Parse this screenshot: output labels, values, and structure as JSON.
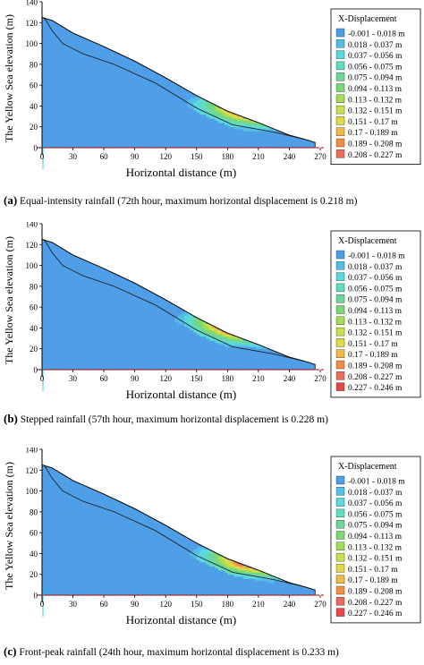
{
  "colors": {
    "background": "#4f9ee8",
    "axis_red": "#cc2222",
    "accent_cyan": "#00c8d8"
  },
  "legend_title": "X-Displacement",
  "chart_data": [
    {
      "type": "contour",
      "panel_label": "(a)",
      "caption": "Equal-intensity rainfall (72th hour, maximum horizontal displacement is 0.218 m)",
      "xlabel": "Horizontal distance (m)",
      "ylabel": "The Yellow Sea elevation (m)",
      "xlim": [
        0,
        270
      ],
      "ylim": [
        0,
        140
      ],
      "xticks": [
        0,
        30,
        60,
        90,
        120,
        150,
        180,
        210,
        240,
        270
      ],
      "yticks": [
        0,
        20,
        40,
        60,
        80,
        100,
        120,
        140
      ],
      "legend": [
        {
          "label": "-0.001 - 0.018 m",
          "color": "#4f9ee8"
        },
        {
          "label": "0.018 - 0.037 m",
          "color": "#52bfe8"
        },
        {
          "label": "0.037 - 0.056 m",
          "color": "#5ad8e0"
        },
        {
          "label": "0.056 - 0.075 m",
          "color": "#62dcc0"
        },
        {
          "label": "0.075 - 0.094 m",
          "color": "#6cd898"
        },
        {
          "label": "0.094 - 0.113 m",
          "color": "#7cd870"
        },
        {
          "label": "0.113 - 0.132 m",
          "color": "#a2dc58"
        },
        {
          "label": "0.132 - 0.151 m",
          "color": "#c8e04c"
        },
        {
          "label": "0.151 - 0.17 m",
          "color": "#e4d848"
        },
        {
          "label": "0.17 - 0.189 m",
          "color": "#f0b844"
        },
        {
          "label": "0.189 - 0.208 m",
          "color": "#f09046"
        },
        {
          "label": "0.208 - 0.227 m",
          "color": "#ec6c5c"
        }
      ],
      "slope_surface": [
        [
          0,
          125
        ],
        [
          10,
          122
        ],
        [
          30,
          110
        ],
        [
          60,
          97
        ],
        [
          90,
          83
        ],
        [
          120,
          67
        ],
        [
          150,
          50
        ],
        [
          180,
          35
        ],
        [
          210,
          24
        ],
        [
          240,
          12
        ],
        [
          255,
          8
        ],
        [
          265,
          5
        ]
      ],
      "slip_surface": [
        [
          2,
          125
        ],
        [
          10,
          112
        ],
        [
          20,
          100
        ],
        [
          40,
          90
        ],
        [
          70,
          80
        ],
        [
          110,
          62
        ],
        [
          150,
          38
        ],
        [
          185,
          22
        ],
        [
          225,
          15
        ],
        [
          255,
          8
        ]
      ],
      "max_zone": {
        "x": 200,
        "y": 34
      }
    },
    {
      "type": "contour",
      "panel_label": "(b)",
      "caption": "Stepped rainfall (57th hour, maximum horizontal displacement is 0.228 m)",
      "xlabel": "Horizontal distance (m)",
      "ylabel": "The Yellow Sea elevation (m)",
      "xlim": [
        0,
        270
      ],
      "ylim": [
        0,
        140
      ],
      "xticks": [
        0,
        30,
        60,
        90,
        120,
        150,
        180,
        210,
        240,
        270
      ],
      "yticks": [
        0,
        20,
        40,
        60,
        80,
        100,
        120,
        140
      ],
      "legend": [
        {
          "label": "-0.001 - 0.018 m",
          "color": "#4f9ee8"
        },
        {
          "label": "0.018 - 0.037 m",
          "color": "#52bfe8"
        },
        {
          "label": "0.037 - 0.056 m",
          "color": "#5ad8e0"
        },
        {
          "label": "0.056 - 0.075 m",
          "color": "#62dcc0"
        },
        {
          "label": "0.075 - 0.094 m",
          "color": "#6cd898"
        },
        {
          "label": "0.094 - 0.113 m",
          "color": "#7cd870"
        },
        {
          "label": "0.113 - 0.132 m",
          "color": "#a2dc58"
        },
        {
          "label": "0.132 - 0.151 m",
          "color": "#c8e04c"
        },
        {
          "label": "0.151 - 0.17 m",
          "color": "#e4d848"
        },
        {
          "label": "0.17 - 0.189 m",
          "color": "#f0b844"
        },
        {
          "label": "0.189 - 0.208 m",
          "color": "#f09046"
        },
        {
          "label": "0.208 - 0.227 m",
          "color": "#ec6c5c"
        },
        {
          "label": "0.227 - 0.246 m",
          "color": "#e84848"
        }
      ],
      "slope_surface": [
        [
          0,
          125
        ],
        [
          10,
          122
        ],
        [
          30,
          110
        ],
        [
          60,
          97
        ],
        [
          90,
          83
        ],
        [
          120,
          67
        ],
        [
          150,
          50
        ],
        [
          180,
          35
        ],
        [
          210,
          24
        ],
        [
          240,
          12
        ],
        [
          255,
          8
        ],
        [
          265,
          5
        ]
      ],
      "slip_surface": [
        [
          2,
          125
        ],
        [
          10,
          112
        ],
        [
          20,
          100
        ],
        [
          40,
          90
        ],
        [
          70,
          80
        ],
        [
          110,
          62
        ],
        [
          150,
          38
        ],
        [
          185,
          22
        ],
        [
          225,
          15
        ],
        [
          255,
          8
        ]
      ],
      "max_zone": {
        "x": 190,
        "y": 40
      }
    },
    {
      "type": "contour",
      "panel_label": "(c)",
      "caption": "Front-peak rainfall (24th hour, maximum horizontal displacement is 0.233 m)",
      "xlabel": "Horizontal distance (m)",
      "ylabel": "The Yellow Sea elevation (m)",
      "xlim": [
        0,
        270
      ],
      "ylim": [
        0,
        140
      ],
      "xticks": [
        0,
        30,
        60,
        90,
        120,
        150,
        180,
        210,
        240,
        270
      ],
      "yticks": [
        0,
        20,
        40,
        60,
        80,
        100,
        120,
        140
      ],
      "legend": [
        {
          "label": "-0.001 - 0.018 m",
          "color": "#4f9ee8"
        },
        {
          "label": "0.018 - 0.037 m",
          "color": "#52bfe8"
        },
        {
          "label": "0.037 - 0.056 m",
          "color": "#5ad8e0"
        },
        {
          "label": "0.056 - 0.075 m",
          "color": "#62dcc0"
        },
        {
          "label": "0.075 - 0.094 m",
          "color": "#6cd898"
        },
        {
          "label": "0.094 - 0.113 m",
          "color": "#7cd870"
        },
        {
          "label": "0.113 - 0.132 m",
          "color": "#a2dc58"
        },
        {
          "label": "0.132 - 0.151 m",
          "color": "#c8e04c"
        },
        {
          "label": "0.151 - 0.17 m",
          "color": "#e4d848"
        },
        {
          "label": "0.17 - 0.189 m",
          "color": "#f0b844"
        },
        {
          "label": "0.189 - 0.208 m",
          "color": "#f09046"
        },
        {
          "label": "0.208 - 0.227 m",
          "color": "#ec6c5c"
        },
        {
          "label": "0.227 - 0.246 m",
          "color": "#e84848"
        }
      ],
      "slope_surface": [
        [
          0,
          125
        ],
        [
          10,
          122
        ],
        [
          30,
          110
        ],
        [
          60,
          97
        ],
        [
          90,
          83
        ],
        [
          120,
          67
        ],
        [
          150,
          50
        ],
        [
          180,
          35
        ],
        [
          210,
          24
        ],
        [
          240,
          12
        ],
        [
          255,
          8
        ],
        [
          265,
          5
        ]
      ],
      "slip_surface": [
        [
          2,
          125
        ],
        [
          10,
          112
        ],
        [
          20,
          100
        ],
        [
          40,
          90
        ],
        [
          70,
          80
        ],
        [
          110,
          62
        ],
        [
          150,
          38
        ],
        [
          185,
          22
        ],
        [
          225,
          15
        ],
        [
          255,
          8
        ]
      ],
      "max_zone": {
        "x": 200,
        "y": 30
      }
    }
  ]
}
